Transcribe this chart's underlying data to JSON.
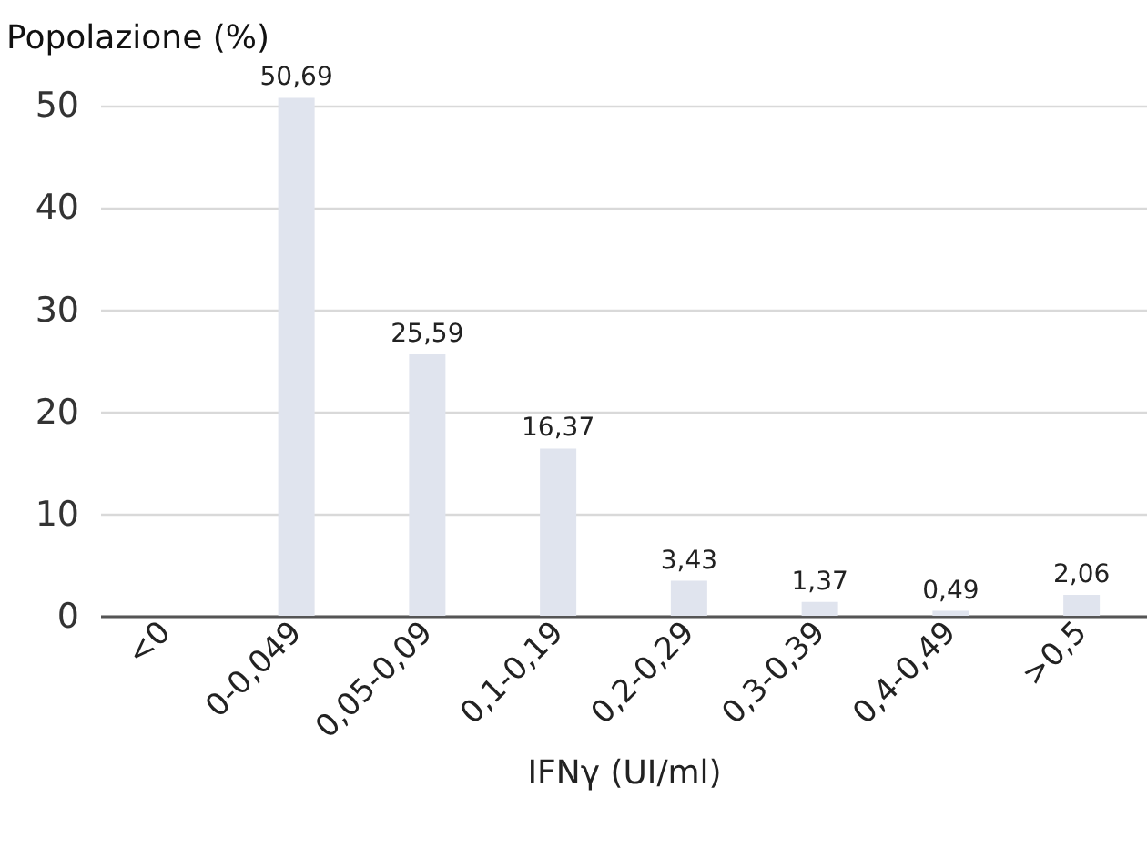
{
  "chart_data": {
    "type": "bar",
    "xlabel": "IFNγ (UI/ml)",
    "ylabel": "Popolazione (%)",
    "categories": [
      "<0",
      "0-0,049",
      "0,05-0,09",
      "0,1-0,19",
      "0,2-0,29",
      "0,3-0,39",
      "0,4-0,49",
      ">0,5"
    ],
    "values": [
      null,
      50.69,
      25.59,
      16.37,
      3.43,
      1.37,
      0.49,
      2.06
    ],
    "value_labels": [
      null,
      "50,69",
      "25,59",
      "16,37",
      "3,43",
      "1,37",
      "0,49",
      "2,06"
    ],
    "color": "#e0e4ee",
    "ylim": [
      0,
      51
    ],
    "yticks": [
      0,
      10,
      20,
      30,
      40,
      50
    ],
    "grid": "y"
  }
}
